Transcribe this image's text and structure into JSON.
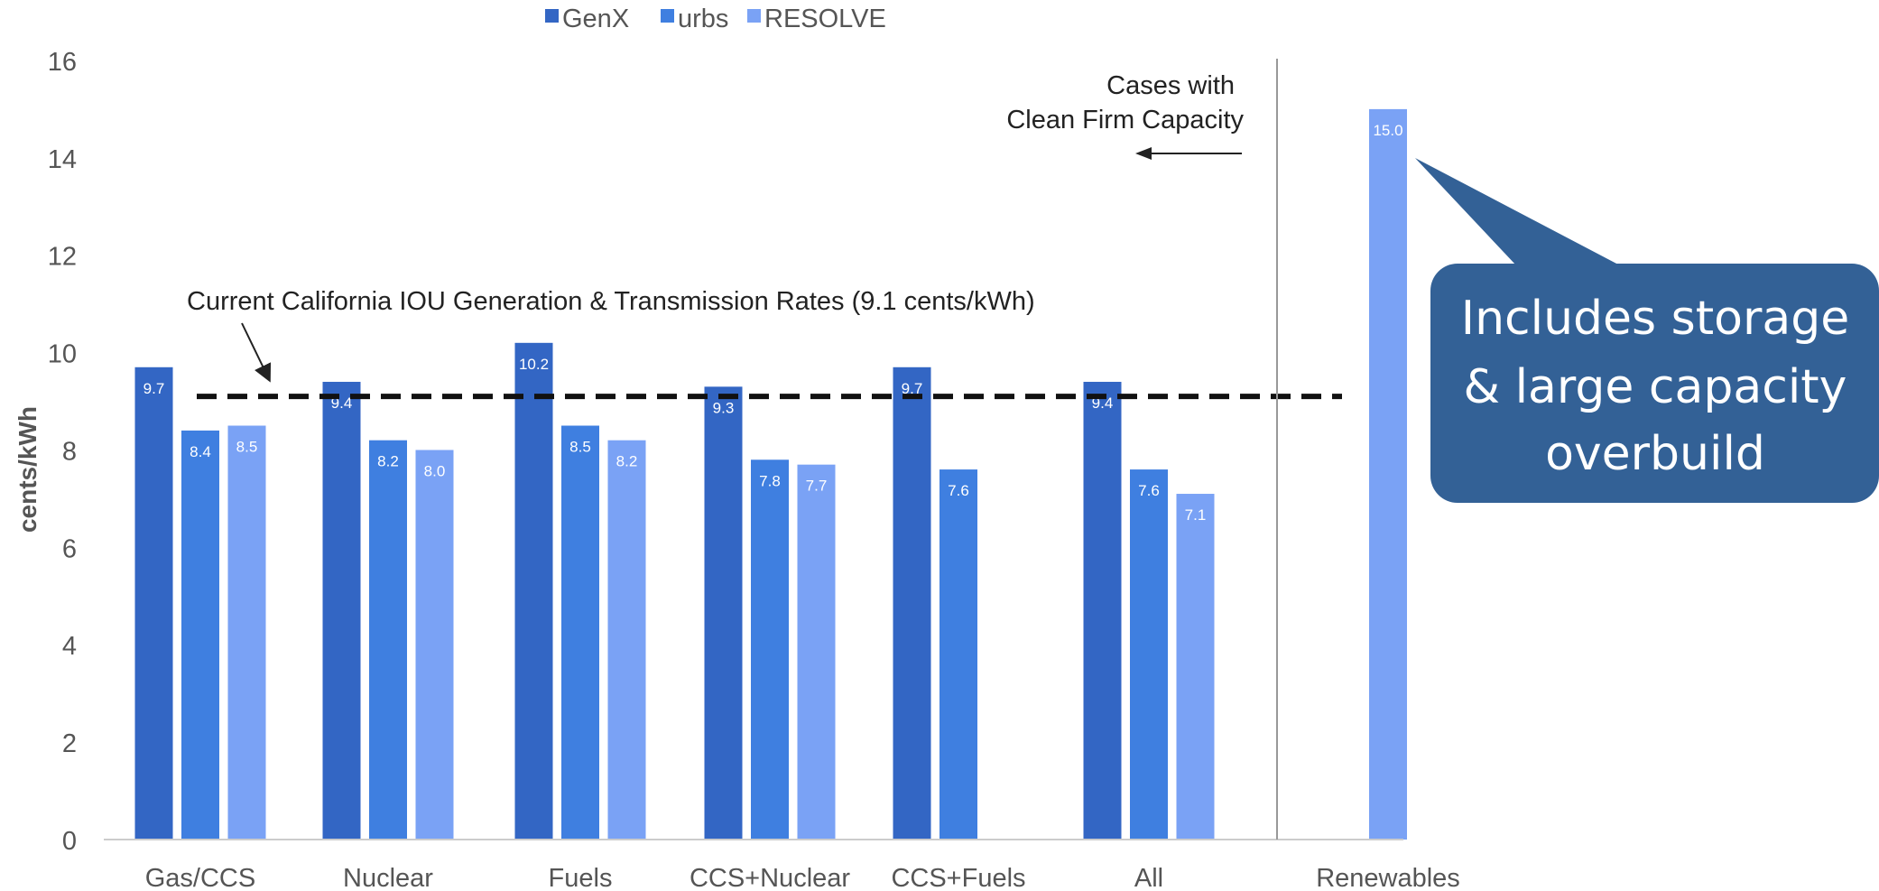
{
  "chart_data": {
    "type": "bar",
    "title": "",
    "xlabel": "",
    "ylabel": "cents/kWh",
    "ylim": [
      0,
      16
    ],
    "yticks": [
      0,
      2,
      4,
      6,
      8,
      10,
      12,
      14,
      16
    ],
    "grid": false,
    "legend_position": "top-center",
    "categories": [
      "Gas/CCS",
      "Nuclear",
      "Fuels",
      "CCS+Nuclear",
      "CCS+Fuels",
      "All",
      "Renewables"
    ],
    "series": [
      {
        "name": "GenX",
        "color": "#3366c4",
        "values": [
          9.7,
          9.4,
          10.2,
          9.3,
          9.7,
          9.4,
          null
        ]
      },
      {
        "name": "urbs",
        "color": "#3f7fe0",
        "values": [
          8.4,
          8.2,
          8.5,
          7.8,
          7.6,
          7.6,
          null
        ]
      },
      {
        "name": "RESOLVE",
        "color": "#7aa2f5",
        "values": [
          8.5,
          8.0,
          8.2,
          7.7,
          null,
          7.1,
          15.0
        ]
      }
    ],
    "reference_line": {
      "value": 9.1,
      "label": "Current California IOU Generation & Transmission Rates (9.1 cents/kWh)"
    },
    "annotations": {
      "clean_firm_line1": "Cases with",
      "clean_firm_line2": "Clean Firm Capacity",
      "callout_line1": "Includes storage",
      "callout_line2": "& large capacity",
      "callout_line3": "overbuild",
      "callout_color": "#336196"
    }
  }
}
